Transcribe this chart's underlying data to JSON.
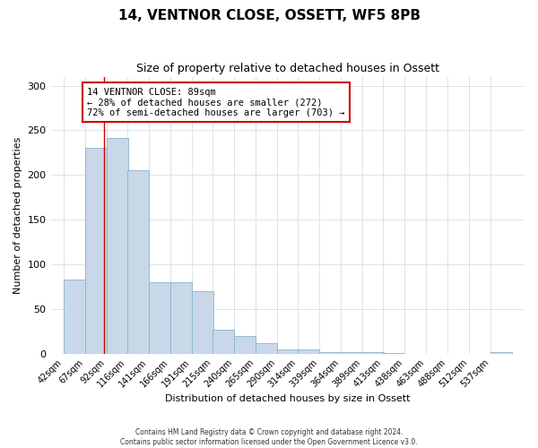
{
  "title": "14, VENTNOR CLOSE, OSSETT, WF5 8PB",
  "subtitle": "Size of property relative to detached houses in Ossett",
  "xlabel": "Distribution of detached houses by size in Ossett",
  "ylabel": "Number of detached properties",
  "bar_labels": [
    "42sqm",
    "67sqm",
    "92sqm",
    "116sqm",
    "141sqm",
    "166sqm",
    "191sqm",
    "215sqm",
    "240sqm",
    "265sqm",
    "290sqm",
    "314sqm",
    "339sqm",
    "364sqm",
    "389sqm",
    "413sqm",
    "438sqm",
    "463sqm",
    "488sqm",
    "512sqm",
    "537sqm"
  ],
  "bar_values": [
    83,
    230,
    241,
    205,
    80,
    80,
    70,
    27,
    20,
    12,
    5,
    5,
    2,
    2,
    2,
    1,
    0,
    0,
    0,
    0,
    2
  ],
  "bar_color": "#c8d8e8",
  "bar_edgecolor": "#8ab4cc",
  "vline_x": 89,
  "vline_color": "#cc0000",
  "annotation_title": "14 VENTNOR CLOSE: 89sqm",
  "annotation_line1": "← 28% of detached houses are smaller (272)",
  "annotation_line2": "72% of semi-detached houses are larger (703) →",
  "annotation_box_color": "#cc0000",
  "ylim": [
    0,
    310
  ],
  "yticks": [
    0,
    50,
    100,
    150,
    200,
    250,
    300
  ],
  "footer1": "Contains HM Land Registry data © Crown copyright and database right 2024.",
  "footer2": "Contains public sector information licensed under the Open Government Licence v3.0.",
  "bin_width": 25,
  "bin_starts": [
    42,
    67,
    92,
    116,
    141,
    166,
    191,
    215,
    240,
    265,
    290,
    314,
    339,
    364,
    389,
    413,
    438,
    463,
    488,
    512,
    537
  ],
  "title_fontsize": 11,
  "subtitle_fontsize": 9,
  "xlabel_fontsize": 8,
  "ylabel_fontsize": 8,
  "tick_fontsize": 7,
  "footer_fontsize": 5.5
}
